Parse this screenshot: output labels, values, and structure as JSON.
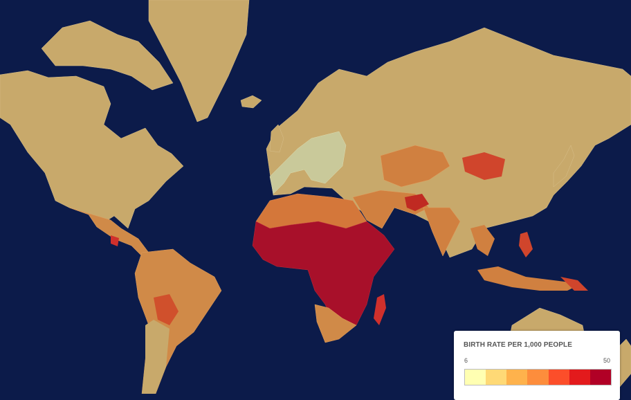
{
  "map": {
    "ocean_color": "#0c1b4a",
    "no_data_land_color": "#c8a96b",
    "regions": [
      {
        "name": "Europe",
        "color": "#c9c99a"
      },
      {
        "name": "North Africa",
        "color": "#d4773a"
      },
      {
        "name": "Sub-Saharan Africa",
        "color": "#a8102a"
      },
      {
        "name": "Latin America",
        "color": "#d08a48"
      },
      {
        "name": "Mongolia",
        "color": "#d0452c"
      }
    ]
  },
  "legend": {
    "title": "BIRTH RATE PER 1,000 PEOPLE",
    "min_label": "6",
    "max_label": "50",
    "colors": [
      "#ffffb2",
      "#fed976",
      "#feb24c",
      "#fd8d3c",
      "#fc4e2a",
      "#e31a1c",
      "#b10026"
    ]
  }
}
